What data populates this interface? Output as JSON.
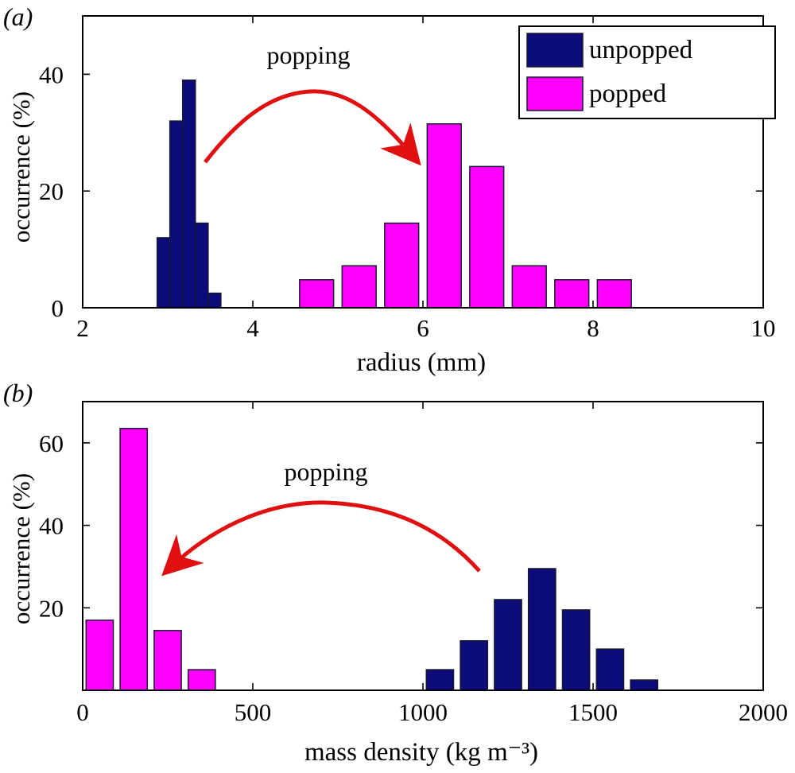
{
  "colors": {
    "unpopped": "#0b0b7a",
    "popped": "#ff00ff",
    "arrow": "#e01010",
    "bar_edge": "#1a1a2e"
  },
  "legend": {
    "unpopped": "unpopped",
    "popped": "popped"
  },
  "chart_data": [
    {
      "type": "bar",
      "panel_label": "(a)",
      "xlabel": "radius (mm)",
      "ylabel": "occurrence (%)",
      "xlim": [
        2,
        10
      ],
      "ylim": [
        0,
        50
      ],
      "xticks": [
        "2",
        "4",
        "6",
        "8",
        "10"
      ],
      "yticks": [
        "0",
        "20",
        "40"
      ],
      "annotation": "popping",
      "annotation_direction": "right",
      "series": [
        {
          "name": "unpopped",
          "color_key": "unpopped",
          "bin_width": 0.15,
          "x": [
            2.95,
            3.1,
            3.25,
            3.4,
            3.55
          ],
          "values": [
            12,
            32,
            39,
            14.5,
            2.5
          ]
        },
        {
          "name": "popped",
          "color_key": "popped",
          "bin_width": 0.4,
          "x": [
            4.75,
            5.25,
            5.75,
            6.25,
            6.75,
            7.25,
            7.75,
            8.25
          ],
          "values": [
            4.8,
            7.2,
            14.5,
            31.5,
            24.2,
            7.2,
            4.8,
            4.8
          ]
        }
      ]
    },
    {
      "type": "bar",
      "panel_label": "(b)",
      "xlabel": "mass density (kg m⁻³)",
      "ylabel": "occurrence (%)",
      "xlim": [
        0,
        2000
      ],
      "ylim": [
        0,
        70
      ],
      "xticks": [
        "0",
        "500",
        "1000",
        "1500",
        "2000"
      ],
      "yticks": [
        "20",
        "40",
        "60"
      ],
      "annotation": "popping",
      "annotation_direction": "left",
      "series": [
        {
          "name": "popped",
          "color_key": "popped",
          "bin_width": 80,
          "x": [
            50,
            150,
            250,
            350
          ],
          "values": [
            17,
            63.5,
            14.5,
            5
          ]
        },
        {
          "name": "unpopped",
          "color_key": "unpopped",
          "bin_width": 80,
          "x": [
            1050,
            1150,
            1250,
            1350,
            1450,
            1550,
            1650
          ],
          "values": [
            5,
            12,
            22,
            29.5,
            19.5,
            10,
            2.5
          ]
        }
      ]
    }
  ]
}
